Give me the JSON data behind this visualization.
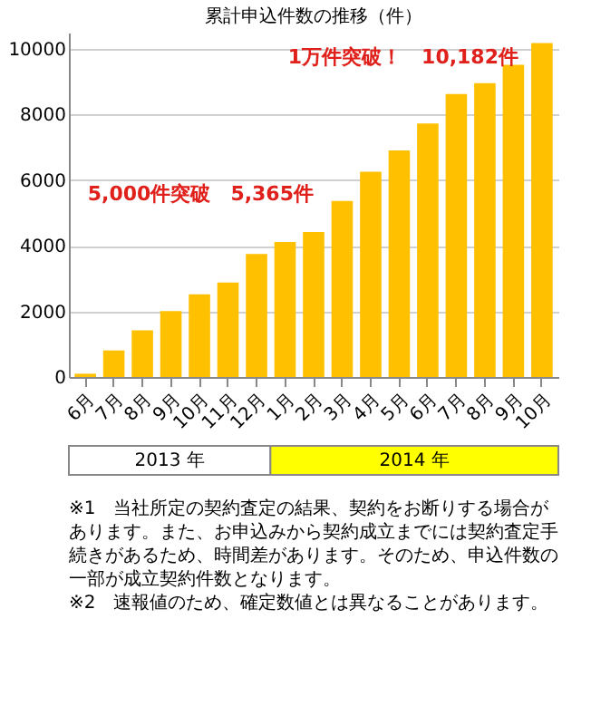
{
  "chart_data": {
    "type": "bar",
    "title": "累計申込件数の推移（件）",
    "categories": [
      "6月",
      "7月",
      "8月",
      "9月",
      "10月",
      "11月",
      "12月",
      "1月",
      "2月",
      "3月",
      "4月",
      "5月",
      "6月",
      "7月",
      "8月",
      "9月",
      "10月"
    ],
    "values": [
      100,
      810,
      1420,
      2010,
      2520,
      2880,
      3750,
      4120,
      4420,
      5365,
      6260,
      6910,
      7730,
      8630,
      8960,
      9520,
      10182
    ],
    "color": "#ffc000",
    "ylim": [
      0,
      10500
    ],
    "yticks": [
      0,
      2000,
      4000,
      6000,
      8000,
      10000
    ],
    "grid": "y",
    "annotations": [
      "1万件突破！　10,182件",
      "5,000件突破　5,365件",
      "2013 年",
      "2014 年",
      "※1　当社所定の契約査定の結果、契約をお断りする場合があります。また、お申込みから契約成立までには契約査定手続きがあるため、時間差があります。そのため、申込件数の一部が成立契約件数となります。",
      "※2　速報値のため、確定数値とは異なることがあります。"
    ]
  }
}
